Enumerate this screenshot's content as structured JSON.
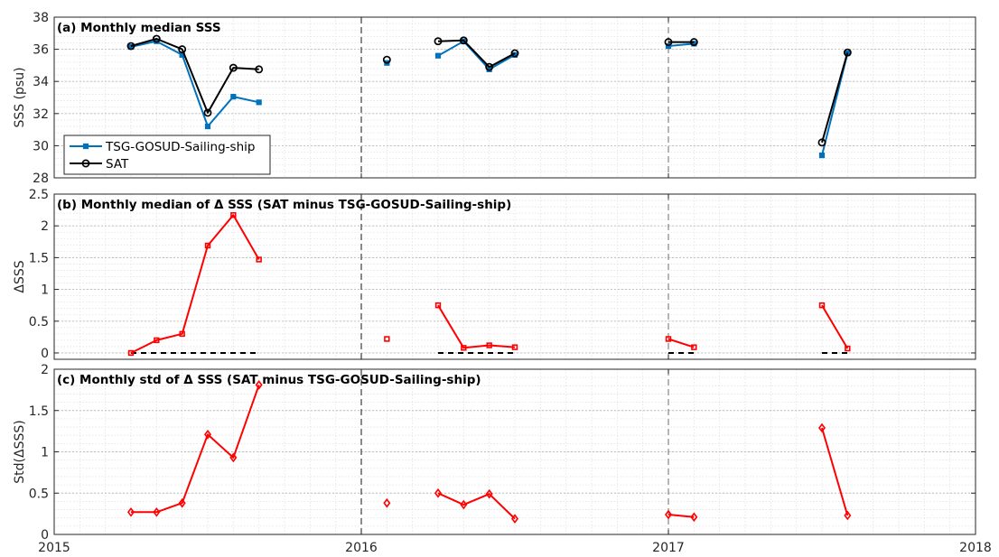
{
  "chart_data": [
    {
      "type": "line",
      "title": "(a) Monthly median SSS",
      "ylabel": "SSS (psu)",
      "xlim": [
        "2015",
        "2018"
      ],
      "ylim": [
        28,
        38
      ],
      "yticks": [
        28,
        30,
        32,
        34,
        36,
        38
      ],
      "ytick_labels": [
        "28",
        "30",
        "32",
        "34",
        "36",
        "38"
      ],
      "grid": true,
      "legend": "bottom-left",
      "colors": {
        "tsg": "#0072BD",
        "sat": "#000000"
      },
      "series": [
        {
          "name": "TSG-GOSUD-Sailing-ship",
          "points": [
            [
              "2015-04",
              36.15
            ],
            [
              "2015-05",
              36.5
            ],
            [
              "2015-06",
              35.65
            ],
            [
              "2015-07",
              31.2
            ],
            [
              "2015-08",
              33.05
            ],
            [
              "2015-09",
              32.7
            ],
            [
              "2016-02",
              35.15
            ],
            [
              "2016-04",
              35.6
            ],
            [
              "2016-05",
              36.5
            ],
            [
              "2016-06",
              34.75
            ],
            [
              "2016-07",
              35.65
            ],
            [
              "2017-01",
              36.2
            ],
            [
              "2017-02",
              36.35
            ],
            [
              "2017-07",
              29.4
            ],
            [
              "2017-08",
              35.75
            ]
          ],
          "segments": [
            [
              0,
              5
            ],
            [
              6,
              6
            ],
            [
              7,
              10
            ],
            [
              11,
              12
            ],
            [
              13,
              14
            ]
          ]
        },
        {
          "name": "SAT",
          "points": [
            [
              "2015-04",
              36.2
            ],
            [
              "2015-05",
              36.65
            ],
            [
              "2015-06",
              36.0
            ],
            [
              "2015-07",
              32.05
            ],
            [
              "2015-08",
              34.85
            ],
            [
              "2015-09",
              34.75
            ],
            [
              "2016-02",
              35.35
            ],
            [
              "2016-04",
              36.5
            ],
            [
              "2016-05",
              36.55
            ],
            [
              "2016-06",
              34.9
            ],
            [
              "2016-07",
              35.75
            ],
            [
              "2017-01",
              36.45
            ],
            [
              "2017-02",
              36.45
            ],
            [
              "2017-07",
              30.2
            ],
            [
              "2017-08",
              35.8
            ]
          ],
          "segments": [
            [
              0,
              5
            ],
            [
              6,
              6
            ],
            [
              7,
              10
            ],
            [
              11,
              12
            ],
            [
              13,
              14
            ]
          ]
        }
      ]
    },
    {
      "type": "line",
      "title": "(b) Monthly median of Δ SSS (SAT minus TSG-GOSUD-Sailing-ship)",
      "ylabel": "ΔSSS",
      "xlim": [
        "2015",
        "2018"
      ],
      "ylim": [
        -0.1,
        2.5
      ],
      "yticks": [
        0,
        0.5,
        1,
        1.5,
        2,
        2.5
      ],
      "ytick_labels": [
        "0",
        "0.5",
        "1",
        "1.5",
        "2",
        "2.5"
      ],
      "grid": true,
      "colors": {
        "delta": "#FF0000",
        "zero": "#000000"
      },
      "series": [
        {
          "points": [
            [
              "2015-04",
              0.0
            ],
            [
              "2015-05",
              0.2
            ],
            [
              "2015-06",
              0.3
            ],
            [
              "2015-07",
              1.69
            ],
            [
              "2015-08",
              2.17
            ],
            [
              "2015-09",
              1.47
            ],
            [
              "2016-02",
              0.22
            ],
            [
              "2016-04",
              0.75
            ],
            [
              "2016-05",
              0.08
            ],
            [
              "2016-06",
              0.12
            ],
            [
              "2016-07",
              0.09
            ],
            [
              "2017-01",
              0.22
            ],
            [
              "2017-02",
              0.09
            ],
            [
              "2017-07",
              0.75
            ],
            [
              "2017-08",
              0.07
            ]
          ],
          "segments": [
            [
              0,
              5
            ],
            [
              6,
              6
            ],
            [
              7,
              10
            ],
            [
              11,
              12
            ],
            [
              13,
              14
            ]
          ]
        }
      ],
      "zero_lines": [
        [
          "2015-04",
          "2015-09"
        ],
        [
          "2016-04",
          "2016-07"
        ],
        [
          "2017-01",
          "2017-02"
        ],
        [
          "2017-07",
          "2017-08"
        ]
      ]
    },
    {
      "type": "line",
      "title": "(c) Monthly std of Δ SSS (SAT minus TSG-GOSUD-Sailing-ship)",
      "ylabel": "Std(ΔSSS)",
      "xlim": [
        "2015",
        "2018"
      ],
      "ylim": [
        0,
        2
      ],
      "yticks": [
        0,
        0.5,
        1,
        1.5,
        2
      ],
      "ytick_labels": [
        "0",
        "0.5",
        "1",
        "1.5",
        "2"
      ],
      "xticks": [
        "2015",
        "2016",
        "2017",
        "2018"
      ],
      "grid": true,
      "colors": {
        "std": "#FF0000"
      },
      "series": [
        {
          "points": [
            [
              "2015-04",
              0.27
            ],
            [
              "2015-05",
              0.27
            ],
            [
              "2015-06",
              0.38
            ],
            [
              "2015-07",
              1.21
            ],
            [
              "2015-08",
              0.93
            ],
            [
              "2015-09",
              1.81
            ],
            [
              "2016-02",
              0.38
            ],
            [
              "2016-04",
              0.5
            ],
            [
              "2016-05",
              0.36
            ],
            [
              "2016-06",
              0.49
            ],
            [
              "2016-07",
              0.19
            ],
            [
              "2017-01",
              0.24
            ],
            [
              "2017-02",
              0.21
            ],
            [
              "2017-07",
              1.29
            ],
            [
              "2017-08",
              0.23
            ]
          ],
          "segments": [
            [
              0,
              5
            ],
            [
              6,
              6
            ],
            [
              7,
              10
            ],
            [
              11,
              12
            ],
            [
              13,
              14
            ]
          ]
        }
      ]
    }
  ],
  "year_dividers": [
    "2016",
    "2017"
  ]
}
